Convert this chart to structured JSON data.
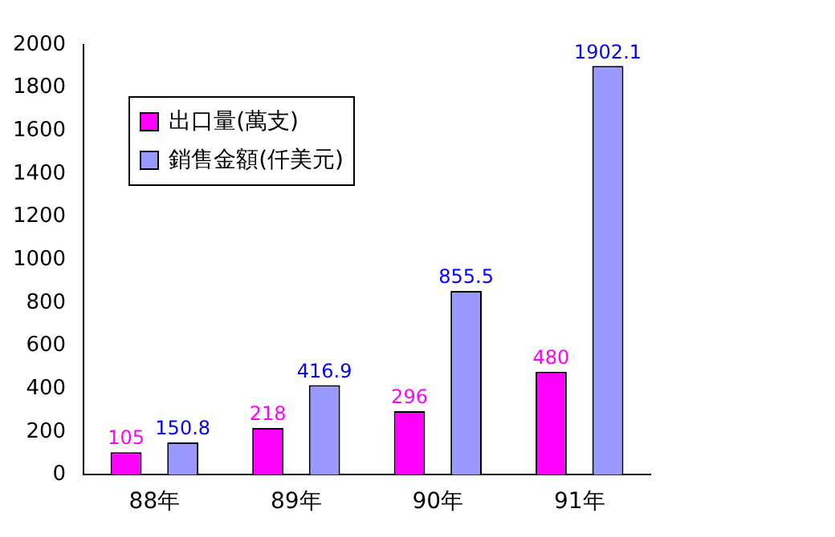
{
  "chart_data": {
    "type": "bar",
    "categories": [
      "88年",
      "89年",
      "90年",
      "91年"
    ],
    "series": [
      {
        "name": "出口量(萬支)",
        "color": "#ff00ff",
        "values": [
          105,
          218,
          296,
          480
        ]
      },
      {
        "name": "銷售金額(仟美元)",
        "color": "#9999ff",
        "values": [
          150.8,
          416.9,
          855.5,
          1902.1
        ]
      }
    ],
    "ylim": [
      0,
      2000
    ],
    "yticks": [
      0,
      200,
      400,
      600,
      800,
      1000,
      1200,
      1400,
      1600,
      1800,
      2000
    ],
    "grid": false,
    "legend": "top left",
    "data_labels": true
  }
}
